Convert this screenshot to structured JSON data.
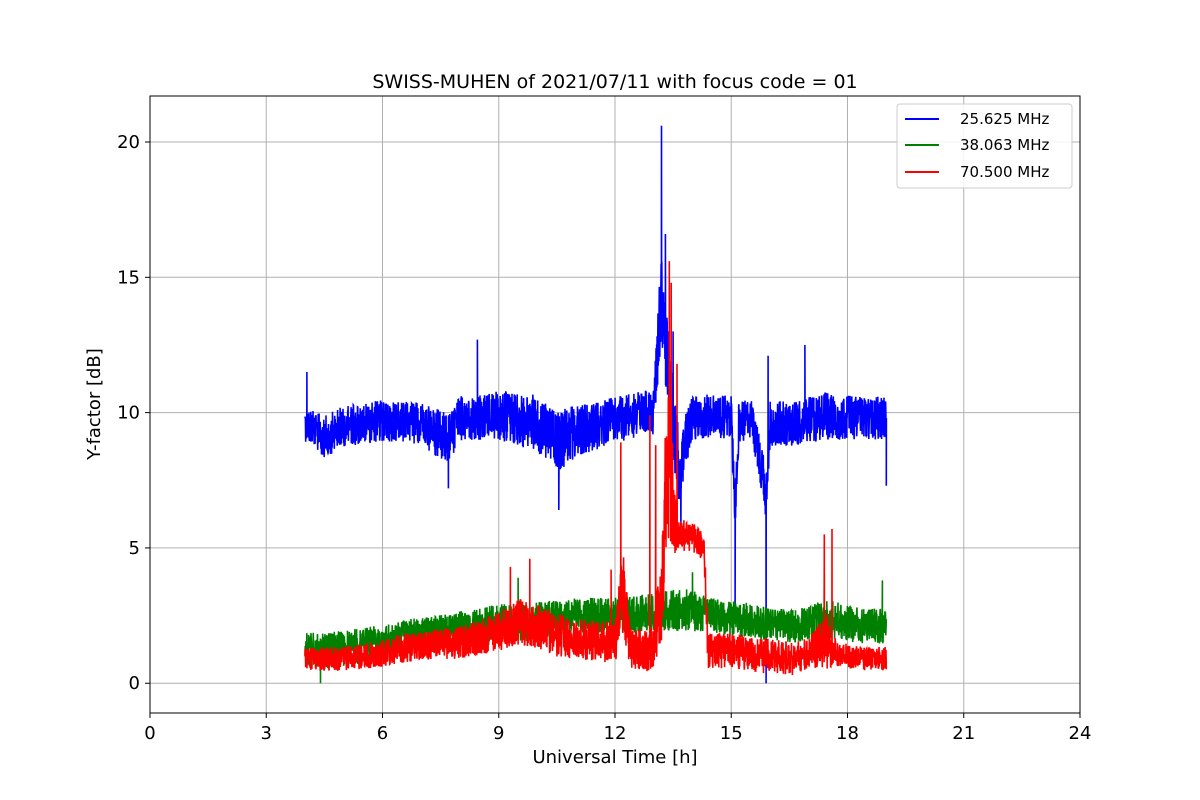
{
  "chart_data": {
    "type": "line",
    "title": "SWISS-MUHEN of 2021/07/11 with focus code = 01",
    "xlabel": "Universal Time [h]",
    "ylabel": "Y-factor [dB]",
    "xlim": [
      0,
      24
    ],
    "ylim": [
      -1.1,
      21.7
    ],
    "xticks": [
      0,
      3,
      6,
      9,
      12,
      15,
      18,
      21,
      24
    ],
    "xtick_labels": [
      "0",
      "3",
      "6",
      "9",
      "12",
      "15",
      "18",
      "21",
      "24"
    ],
    "yticks": [
      0,
      5,
      10,
      15,
      20
    ],
    "ytick_labels": [
      "0",
      "5",
      "10",
      "15",
      "20"
    ],
    "grid": true,
    "legend_position": "top-right",
    "series": [
      {
        "name": "25.625 MHz",
        "color": "#0000ff",
        "x": [
          4.0,
          4.5,
          5.0,
          6.0,
          7.0,
          7.7,
          8.0,
          8.5,
          9.0,
          10.0,
          10.5,
          11.0,
          11.5,
          12.0,
          12.5,
          13.0,
          13.2,
          13.3,
          13.4,
          13.5,
          13.7,
          13.8,
          14.0,
          14.5,
          15.0,
          15.1,
          15.2,
          15.5,
          15.9,
          16.0,
          16.5,
          17.0,
          17.5,
          18.0,
          18.5,
          19.0
        ],
        "values": [
          9.6,
          9.1,
          9.5,
          9.7,
          9.6,
          9.0,
          9.8,
          9.8,
          9.9,
          9.6,
          8.9,
          9.3,
          9.5,
          9.7,
          9.9,
          10.0,
          14.5,
          12.5,
          11.5,
          9.5,
          7.5,
          8.8,
          9.8,
          9.9,
          9.8,
          6.5,
          9.7,
          9.9,
          7.0,
          9.6,
          9.6,
          9.7,
          9.9,
          9.8,
          9.8,
          9.8
        ],
        "band": [
          1.2,
          1.4,
          1.4,
          1.4,
          1.4,
          1.8,
          1.5,
          1.5,
          1.7,
          1.9,
          2.1,
          1.8,
          1.6,
          1.6,
          1.5,
          1.6,
          3.0,
          2.8,
          2.5,
          2.6,
          2.3,
          2.0,
          1.5,
          1.5,
          1.5,
          1.5,
          1.5,
          1.5,
          1.7,
          1.5,
          1.5,
          1.6,
          1.6,
          1.5,
          1.5,
          1.5
        ],
        "spikes": [
          [
            4.05,
            11.5
          ],
          [
            8.45,
            12.7
          ],
          [
            7.7,
            7.2
          ],
          [
            10.55,
            6.4
          ],
          [
            13.2,
            20.6
          ],
          [
            13.3,
            16.6
          ],
          [
            13.5,
            13.0
          ],
          [
            13.7,
            5.8
          ],
          [
            15.1,
            2.6
          ],
          [
            15.9,
            0.0
          ],
          [
            15.95,
            12.1
          ],
          [
            16.9,
            12.5
          ],
          [
            19.0,
            7.3
          ]
        ]
      },
      {
        "name": "38.063 MHz",
        "color": "#008000",
        "x": [
          4.0,
          4.5,
          5.0,
          6.0,
          7.0,
          8.0,
          9.0,
          10.0,
          11.0,
          12.0,
          13.0,
          13.5,
          14.0,
          14.5,
          15.0,
          15.5,
          16.0,
          16.5,
          17.0,
          17.5,
          18.0,
          18.5,
          19.0
        ],
        "values": [
          1.3,
          1.2,
          1.3,
          1.5,
          1.8,
          2.0,
          2.2,
          2.3,
          2.5,
          2.5,
          2.6,
          2.7,
          2.7,
          2.5,
          2.4,
          2.3,
          2.2,
          2.1,
          2.2,
          2.4,
          2.2,
          2.1,
          2.1
        ],
        "band": [
          1.1,
          1.2,
          1.2,
          1.2,
          1.2,
          1.2,
          1.3,
          1.3,
          1.2,
          1.2,
          1.3,
          1.4,
          1.4,
          1.2,
          1.2,
          1.2,
          1.1,
          1.1,
          1.2,
          1.3,
          1.2,
          1.2,
          1.2
        ],
        "spikes": [
          [
            4.4,
            0.0
          ],
          [
            9.5,
            3.9
          ],
          [
            14.0,
            4.1
          ],
          [
            17.4,
            4.0
          ],
          [
            18.9,
            3.8
          ]
        ]
      },
      {
        "name": "70.500 MHz",
        "color": "#ff0000",
        "x": [
          4.0,
          5.0,
          6.0,
          6.5,
          7.0,
          8.0,
          9.0,
          9.5,
          10.0,
          10.5,
          11.0,
          11.5,
          12.0,
          12.2,
          12.4,
          12.8,
          13.0,
          13.2,
          13.3,
          13.4,
          13.5,
          13.6,
          14.0,
          14.3,
          14.4,
          15.0,
          15.5,
          16.0,
          16.5,
          17.0,
          17.5,
          17.6,
          18.0,
          18.5,
          19.0
        ],
        "values": [
          0.9,
          0.9,
          1.1,
          1.3,
          1.4,
          1.5,
          1.9,
          2.3,
          2.1,
          1.8,
          1.6,
          1.6,
          1.5,
          3.5,
          1.3,
          1.2,
          1.4,
          3.0,
          7.0,
          8.5,
          6.5,
          5.5,
          5.4,
          5.0,
          1.2,
          1.2,
          1.1,
          1.0,
          0.9,
          1.1,
          1.6,
          1.2,
          1.0,
          0.9,
          0.9
        ],
        "band": [
          0.8,
          0.8,
          0.9,
          1.0,
          1.0,
          1.1,
          1.3,
          1.6,
          1.5,
          1.5,
          1.4,
          1.4,
          1.4,
          3.0,
          1.4,
          1.4,
          1.6,
          3.5,
          5.0,
          5.5,
          3.5,
          1.2,
          1.0,
          1.0,
          1.2,
          1.2,
          1.2,
          1.2,
          1.2,
          1.0,
          2.0,
          1.0,
          0.8,
          0.8,
          0.8
        ],
        "spikes": [
          [
            9.3,
            4.3
          ],
          [
            9.8,
            4.6
          ],
          [
            11.9,
            4.2
          ],
          [
            12.15,
            8.9
          ],
          [
            12.9,
            9.9
          ],
          [
            13.05,
            8.8
          ],
          [
            13.4,
            15.6
          ],
          [
            13.45,
            14.8
          ],
          [
            13.6,
            11.8
          ],
          [
            17.4,
            5.5
          ],
          [
            17.6,
            5.7
          ]
        ]
      }
    ]
  }
}
